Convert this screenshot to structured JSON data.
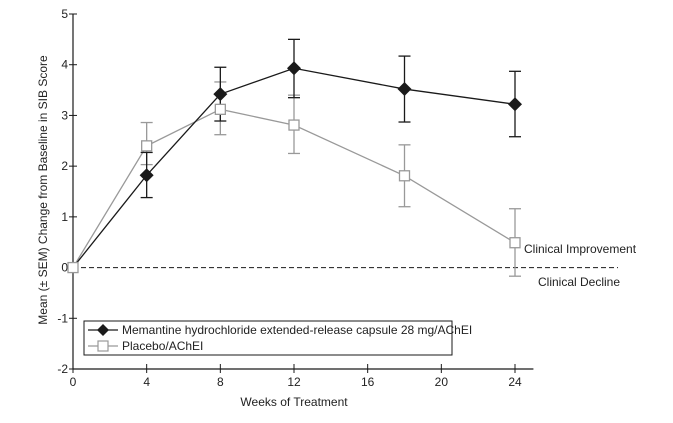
{
  "chart_data": {
    "type": "line",
    "title": "",
    "xlabel": "Weeks of Treatment",
    "ylabel": "Mean (± SEM) Change from Baseline in SIB Score",
    "xlim": [
      0,
      25
    ],
    "ylim": [
      -2,
      5
    ],
    "xticks": [
      0,
      4,
      8,
      12,
      16,
      20,
      24
    ],
    "yticks": [
      5,
      4,
      3,
      2,
      1,
      0,
      -1,
      -2
    ],
    "grid": false,
    "reference_line": {
      "y": 0,
      "style": "dashed"
    },
    "annotations": [
      {
        "text": "Clinical Improvement",
        "position": "above reference line, right"
      },
      {
        "text": "Clinical Decline",
        "position": "below reference line, right"
      }
    ],
    "legend": {
      "placement": "bottom-left"
    },
    "series": [
      {
        "name": "Memantine hydrochloride extended-release capsule 28 mg/AChEI",
        "marker": "filled-diamond",
        "color": "#1a1a1a",
        "x": [
          0,
          4,
          8,
          12,
          18,
          24
        ],
        "values": [
          0,
          1.82,
          3.42,
          3.93,
          3.52,
          3.22
        ],
        "err_low": [
          0,
          1.38,
          2.89,
          3.35,
          2.87,
          2.58
        ],
        "err_high": [
          0,
          2.27,
          3.95,
          4.5,
          4.17,
          3.87
        ]
      },
      {
        "name": "Placebo/AChEI",
        "marker": "open-square",
        "color": "#999999",
        "x": [
          0,
          4,
          8,
          12,
          18,
          24
        ],
        "values": [
          0,
          2.4,
          3.12,
          2.81,
          1.81,
          0.49
        ],
        "err_low": [
          0,
          2.03,
          2.62,
          2.25,
          1.2,
          -0.17
        ],
        "err_high": [
          0,
          2.86,
          3.66,
          3.4,
          2.42,
          1.16
        ]
      }
    ]
  }
}
